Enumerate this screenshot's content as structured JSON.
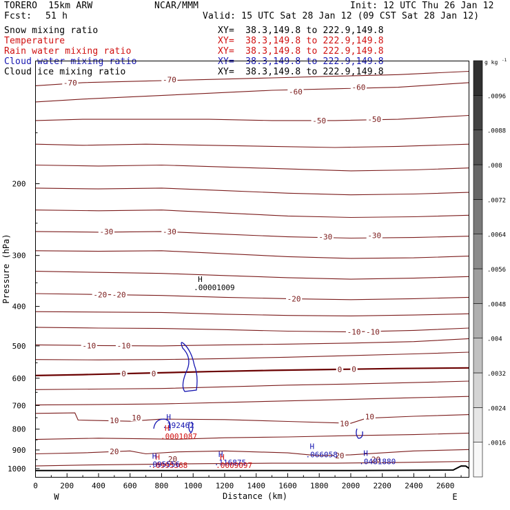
{
  "header": {
    "model_left": "TORERO  15km ARW",
    "center": "NCAR/MMM",
    "init": "Init: 12 UTC Thu 26 Jan 12",
    "fcst_label": "Fcst:",
    "fcst_value": "51 h",
    "valid": "Valid: 15 UTC Sat 28 Jan 12 (09 CST Sat 28 Jan 12)"
  },
  "fields": [
    {
      "name": "Snow mixing ratio",
      "xy": "XY=  38.3,149.8 to 222.9,149.8",
      "color": "#000000"
    },
    {
      "name": "Temperature",
      "xy": "XY=  38.3,149.8 to 222.9,149.8",
      "color": "#d01010"
    },
    {
      "name": "Rain water mixing ratio",
      "xy": "XY=  38.3,149.8 to 222.9,149.8",
      "color": "#d01010"
    },
    {
      "name": "Cloud water mixing ratio",
      "xy": "XY=  38.3,149.8 to 222.9,149.8",
      "color": "#1515b0"
    },
    {
      "name": "Cloud ice mixing ratio",
      "xy": "XY=  38.3,149.8 to 222.9,149.8",
      "color": "#000000"
    }
  ],
  "colorbar": {
    "unit": "g kg",
    "unit_exp": "-1",
    "ticks": [
      ".0016",
      ".0024",
      ".0032",
      ".004",
      ".0048",
      ".0056",
      ".0064",
      ".0072",
      ".008",
      ".0088",
      ".0096"
    ]
  },
  "chart_data": {
    "type": "contour cross-section",
    "xlabel": "Distance (km)",
    "ylabel": "Pressure (hPa)",
    "x_ticks": [
      "0",
      "200",
      "400",
      "600",
      "800",
      "1000",
      "1200",
      "1400",
      "1600",
      "1800",
      "2000",
      "2200",
      "2400",
      "2600"
    ],
    "x_tick_values": [
      0,
      200,
      400,
      600,
      800,
      1000,
      1200,
      1400,
      1600,
      1800,
      2000,
      2200,
      2400,
      2600
    ],
    "xlim": [
      0,
      2750
    ],
    "y_ticks": [
      "200",
      "300",
      "400",
      "500",
      "600",
      "700",
      "800",
      "900",
      "1000"
    ],
    "y_tick_values": [
      200,
      300,
      400,
      500,
      600,
      700,
      800,
      900,
      1000
    ],
    "ylim": [
      1050,
      100
    ],
    "y_scale": "log",
    "left_end_label": "W",
    "right_end_label": "E",
    "line_color": "#7a1a1a",
    "zero_line_color": "#6a0000",
    "temperature_contours": [
      {
        "level": -70,
        "p": [
          [
            0,
            115
          ],
          [
            300,
            113
          ],
          [
            700,
            112
          ],
          [
            1100,
            111
          ],
          [
            1500,
            110
          ],
          [
            1900,
            109
          ],
          [
            2300,
            108
          ],
          [
            2750,
            106
          ]
        ]
      },
      {
        "level": -60,
        "p": [
          [
            0,
            126
          ],
          [
            300,
            124
          ],
          [
            700,
            122
          ],
          [
            1100,
            120
          ],
          [
            1500,
            118
          ],
          [
            1900,
            117
          ],
          [
            2300,
            116
          ],
          [
            2750,
            113
          ]
        ]
      },
      {
        "level": -50,
        "p": [
          [
            0,
            140
          ],
          [
            300,
            139
          ],
          [
            700,
            139
          ],
          [
            1100,
            139
          ],
          [
            1500,
            140
          ],
          [
            1900,
            140
          ],
          [
            2300,
            139
          ],
          [
            2750,
            136
          ]
        ]
      },
      {
        "level": -40,
        "p": [
          [
            0,
            160
          ],
          [
            300,
            161
          ],
          [
            700,
            160
          ],
          [
            1100,
            161
          ],
          [
            1500,
            162
          ],
          [
            1900,
            163
          ],
          [
            2300,
            162
          ],
          [
            2750,
            160
          ]
        ]
      },
      {
        "level": -40,
        "p": [
          [
            0,
            180
          ],
          [
            400,
            181
          ],
          [
            800,
            180
          ],
          [
            1200,
            182
          ],
          [
            1600,
            184
          ],
          [
            2000,
            186
          ],
          [
            2400,
            185
          ],
          [
            2750,
            183
          ]
        ]
      },
      {
        "level": -30,
        "p": [
          [
            0,
            205
          ],
          [
            400,
            206
          ],
          [
            800,
            205
          ],
          [
            1200,
            208
          ],
          [
            1600,
            211
          ],
          [
            2000,
            213
          ],
          [
            2400,
            212
          ],
          [
            2750,
            210
          ]
        ]
      },
      {
        "level": -30,
        "p": [
          [
            0,
            232
          ],
          [
            400,
            233
          ],
          [
            800,
            232
          ],
          [
            1200,
            236
          ],
          [
            1600,
            240
          ],
          [
            2000,
            242
          ],
          [
            2400,
            241
          ],
          [
            2750,
            239
          ]
        ]
      },
      {
        "level": -30,
        "p": [
          [
            0,
            262
          ],
          [
            400,
            263
          ],
          [
            800,
            262
          ],
          [
            1200,
            266
          ],
          [
            1600,
            270
          ],
          [
            2000,
            272
          ],
          [
            2400,
            271
          ],
          [
            2750,
            269
          ]
        ]
      },
      {
        "level": -30,
        "p": [
          [
            0,
            292
          ],
          [
            400,
            293
          ],
          [
            800,
            292
          ],
          [
            1200,
            297
          ],
          [
            1600,
            302
          ],
          [
            2000,
            305
          ],
          [
            2400,
            304
          ],
          [
            2750,
            301
          ]
        ]
      },
      {
        "level": -30,
        "p": [
          [
            0,
            328
          ],
          [
            400,
            330
          ],
          [
            800,
            332
          ],
          [
            1200,
            336
          ],
          [
            1600,
            340
          ],
          [
            2000,
            343
          ],
          [
            2400,
            341
          ],
          [
            2750,
            338
          ]
        ]
      },
      {
        "level": -20,
        "p": [
          [
            0,
            372
          ],
          [
            400,
            374
          ],
          [
            800,
            376
          ],
          [
            1200,
            380
          ],
          [
            1600,
            383
          ],
          [
            2000,
            385
          ],
          [
            2400,
            383
          ],
          [
            2750,
            380
          ]
        ]
      },
      {
        "level": -20,
        "p": [
          [
            0,
            412
          ],
          [
            400,
            413
          ],
          [
            800,
            414
          ],
          [
            1200,
            418
          ],
          [
            1600,
            421
          ],
          [
            2000,
            422
          ],
          [
            2400,
            420
          ],
          [
            2750,
            417
          ]
        ]
      },
      {
        "level": -10,
        "p": [
          [
            0,
            450
          ],
          [
            400,
            452
          ],
          [
            800,
            453
          ],
          [
            1200,
            456
          ],
          [
            1600,
            460
          ],
          [
            2000,
            462
          ],
          [
            2400,
            458
          ],
          [
            2750,
            452
          ]
        ]
      },
      {
        "level": -10,
        "p": [
          [
            0,
            497
          ],
          [
            400,
            499
          ],
          [
            800,
            500
          ],
          [
            1200,
            497
          ],
          [
            1600,
            495
          ],
          [
            2000,
            492
          ],
          [
            2400,
            488
          ],
          [
            2750,
            480
          ]
        ]
      },
      {
        "level": -10,
        "p": [
          [
            0,
            540
          ],
          [
            400,
            541
          ],
          [
            800,
            540
          ],
          [
            1200,
            537
          ],
          [
            1600,
            533
          ],
          [
            2000,
            528
          ],
          [
            2400,
            523
          ],
          [
            2750,
            518
          ]
        ]
      },
      {
        "level": 0,
        "p": [
          [
            0,
            591
          ],
          [
            300,
            588
          ],
          [
            700,
            583
          ],
          [
            1100,
            578
          ],
          [
            1500,
            574
          ],
          [
            1900,
            571
          ],
          [
            2300,
            568
          ],
          [
            2750,
            566
          ]
        ]
      },
      {
        "level": 0,
        "p": [
          [
            0,
            640
          ],
          [
            400,
            638
          ],
          [
            800,
            636
          ],
          [
            1200,
            630
          ],
          [
            1600,
            624
          ],
          [
            2000,
            620
          ],
          [
            2400,
            615
          ],
          [
            2750,
            610
          ]
        ]
      },
      {
        "level": 10,
        "p": [
          [
            0,
            698
          ],
          [
            400,
            696
          ],
          [
            800,
            694
          ],
          [
            1200,
            688
          ],
          [
            1600,
            682
          ],
          [
            2000,
            676
          ],
          [
            2400,
            670
          ],
          [
            2750,
            665
          ]
        ]
      },
      {
        "level": 10,
        "p": [
          [
            0,
            732
          ],
          [
            250,
            730
          ],
          [
            270,
            760
          ],
          [
            600,
            765
          ],
          [
            800,
            756
          ],
          [
            1200,
            758
          ],
          [
            1600,
            766
          ],
          [
            2000,
            774
          ],
          [
            2100,
            752
          ],
          [
            2400,
            744
          ],
          [
            2750,
            737
          ]
        ]
      },
      {
        "level": 20,
        "p": [
          [
            0,
            848
          ],
          [
            400,
            842
          ],
          [
            700,
            845
          ],
          [
            900,
            847
          ],
          [
            1200,
            840
          ],
          [
            1600,
            836
          ],
          [
            2000,
            830
          ],
          [
            2400,
            825
          ],
          [
            2750,
            818
          ]
        ]
      },
      {
        "level": 20,
        "p": [
          [
            0,
            920
          ],
          [
            300,
            915
          ],
          [
            600,
            905
          ],
          [
            700,
            920
          ],
          [
            900,
            910
          ],
          [
            1200,
            905
          ],
          [
            1600,
            915
          ],
          [
            1800,
            930
          ],
          [
            2000,
            925
          ],
          [
            2200,
            915
          ],
          [
            2400,
            905
          ],
          [
            2750,
            898
          ]
        ]
      },
      {
        "level": 20,
        "p": [
          [
            0,
            985
          ],
          [
            300,
            980
          ],
          [
            700,
            976
          ],
          [
            1100,
            972
          ],
          [
            1500,
            970
          ],
          [
            1900,
            970
          ],
          [
            2300,
            966
          ],
          [
            2750,
            960
          ]
        ]
      }
    ],
    "temperature_labels": [
      {
        "text": "-70",
        "x": 220,
        "pr": 113
      },
      {
        "text": "-70",
        "x": 850,
        "pr": 111
      },
      {
        "text": "-60",
        "x": 1650,
        "pr": 119
      },
      {
        "text": "-60",
        "x": 2050,
        "pr": 116
      },
      {
        "text": "-50",
        "x": 1800,
        "pr": 140
      },
      {
        "text": "-50",
        "x": 2150,
        "pr": 139
      },
      {
        "text": "-30",
        "x": 450,
        "pr": 262
      },
      {
        "text": "-30",
        "x": 850,
        "pr": 262
      },
      {
        "text": "-30",
        "x": 1840,
        "pr": 270
      },
      {
        "text": "-30",
        "x": 2150,
        "pr": 268
      },
      {
        "text": "-20",
        "x": 410,
        "pr": 374
      },
      {
        "text": "-20",
        "x": 530,
        "pr": 374
      },
      {
        "text": "-20",
        "x": 1640,
        "pr": 383
      },
      {
        "text": "-10",
        "x": 340,
        "pr": 499
      },
      {
        "text": "-10",
        "x": 560,
        "pr": 499
      },
      {
        "text": "-10",
        "x": 2020,
        "pr": 462
      },
      {
        "text": "-10",
        "x": 2140,
        "pr": 462
      },
      {
        "text": "0",
        "x": 560,
        "pr": 585
      },
      {
        "text": "0",
        "x": 750,
        "pr": 584
      },
      {
        "text": "0",
        "x": 1930,
        "pr": 571
      },
      {
        "text": "0",
        "x": 2020,
        "pr": 570
      },
      {
        "text": "10",
        "x": 500,
        "pr": 762
      },
      {
        "text": "10",
        "x": 640,
        "pr": 750
      },
      {
        "text": "10",
        "x": 1960,
        "pr": 775
      },
      {
        "text": "10",
        "x": 2120,
        "pr": 745
      },
      {
        "text": "20",
        "x": 500,
        "pr": 907
      },
      {
        "text": "20",
        "x": 870,
        "pr": 947
      },
      {
        "text": "20",
        "x": 1930,
        "pr": 928
      },
      {
        "text": "20",
        "x": 2160,
        "pr": 948
      }
    ],
    "maxima_markers": [
      {
        "text": "H",
        "value": ".00001009",
        "x": 1030,
        "pr": 354,
        "color": "#000000"
      },
      {
        "text": "H",
        "value": ".192462",
        "x": 830,
        "pr": 770,
        "color": "#1515b0"
      },
      {
        "text": "H",
        "value": ".0001087",
        "x": 820,
        "pr": 820,
        "color": "#d01010"
      },
      {
        "text": "H",
        "value": ".066058",
        "x": 1740,
        "pr": 910,
        "color": "#1515b0"
      },
      {
        "text": "H",
        "value": ".0481880",
        "x": 2080,
        "pr": 945,
        "color": "#1515b0"
      },
      {
        "text": "H",
        "value": ".0995368",
        "x": 760,
        "pr": 965,
        "color": "#d01010"
      },
      {
        "text": "H",
        "value": ".095556",
        "x": 740,
        "pr": 960,
        "color": "#1515b0"
      },
      {
        "text": "H",
        "value": ".116875",
        "x": 1160,
        "pr": 950,
        "color": "#1515b0"
      },
      {
        "text": "H",
        "value": ".0009097",
        "x": 1170,
        "pr": 965,
        "color": "#d01010"
      }
    ],
    "terrain_p": [
      [
        0,
        1011
      ],
      [
        1000,
        1011
      ],
      [
        2000,
        1011
      ],
      [
        2650,
        1008
      ],
      [
        2700,
        985
      ],
      [
        2730,
        986
      ],
      [
        2750,
        998
      ]
    ]
  }
}
